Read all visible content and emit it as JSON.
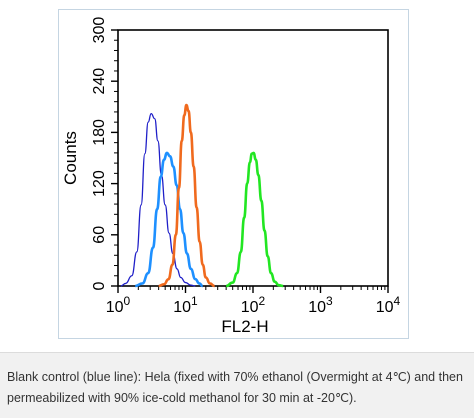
{
  "chart_data": {
    "type": "line",
    "title": "",
    "xlabel": "FL2-H",
    "ylabel": "Counts",
    "x_scale": "log",
    "xlim": [
      1,
      10000
    ],
    "ylim": [
      0,
      300
    ],
    "x_ticks": [
      {
        "value": 1,
        "base": "10",
        "exp": "0"
      },
      {
        "value": 10,
        "base": "10",
        "exp": "1"
      },
      {
        "value": 100,
        "base": "10",
        "exp": "2"
      },
      {
        "value": 1000,
        "base": "10",
        "exp": "3"
      },
      {
        "value": 10000,
        "base": "10",
        "exp": "4"
      }
    ],
    "y_ticks": [
      "0",
      "60",
      "120",
      "180",
      "240",
      "300"
    ],
    "grid": false,
    "series": [
      {
        "color": "#1f1fc8",
        "points": [
          [
            1.1,
            0
          ],
          [
            1.3,
            3
          ],
          [
            1.6,
            12
          ],
          [
            1.9,
            40
          ],
          [
            2.2,
            95
          ],
          [
            2.5,
            155
          ],
          [
            2.8,
            192
          ],
          [
            3.1,
            202
          ],
          [
            3.5,
            196
          ],
          [
            3.9,
            170
          ],
          [
            4.4,
            130
          ],
          [
            5.0,
            95
          ],
          [
            5.7,
            62
          ],
          [
            6.5,
            38
          ],
          [
            7.5,
            20
          ],
          [
            8.5,
            10
          ],
          [
            10,
            4
          ],
          [
            12,
            1
          ],
          [
            14,
            0
          ]
        ]
      },
      {
        "color": "#1e90ff",
        "points": [
          [
            1.8,
            0
          ],
          [
            2.3,
            3
          ],
          [
            2.8,
            15
          ],
          [
            3.3,
            45
          ],
          [
            3.8,
            90
          ],
          [
            4.3,
            128
          ],
          [
            4.8,
            148
          ],
          [
            5.3,
            156
          ],
          [
            5.9,
            152
          ],
          [
            6.6,
            140
          ],
          [
            7.4,
            118
          ],
          [
            8.3,
            90
          ],
          [
            9.3,
            62
          ],
          [
            10.5,
            38
          ],
          [
            12,
            20
          ],
          [
            14,
            8
          ],
          [
            16,
            3
          ],
          [
            18,
            0
          ]
        ]
      },
      {
        "color": "#f06a1e",
        "points": [
          [
            4.0,
            0
          ],
          [
            4.8,
            2
          ],
          [
            5.6,
            8
          ],
          [
            6.4,
            25
          ],
          [
            7.2,
            60
          ],
          [
            8.0,
            115
          ],
          [
            8.8,
            170
          ],
          [
            9.6,
            200
          ],
          [
            10.3,
            212
          ],
          [
            11.1,
            205
          ],
          [
            12,
            180
          ],
          [
            13.2,
            140
          ],
          [
            14.6,
            92
          ],
          [
            16.2,
            52
          ],
          [
            18,
            25
          ],
          [
            20,
            10
          ],
          [
            23,
            3
          ],
          [
            27,
            0
          ]
        ]
      },
      {
        "color": "#22e622",
        "points": [
          [
            40,
            0
          ],
          [
            50,
            4
          ],
          [
            58,
            15
          ],
          [
            66,
            40
          ],
          [
            74,
            80
          ],
          [
            82,
            120
          ],
          [
            90,
            145
          ],
          [
            96,
            155
          ],
          [
            102,
            156
          ],
          [
            110,
            148
          ],
          [
            120,
            130
          ],
          [
            133,
            100
          ],
          [
            148,
            65
          ],
          [
            165,
            35
          ],
          [
            185,
            15
          ],
          [
            210,
            5
          ],
          [
            240,
            1
          ],
          [
            280,
            0
          ]
        ]
      }
    ]
  },
  "caption": {
    "text": "Blank control (blue line): Hela (fixed with 70% ethanol (Overmight at 4℃) and then permeabilized with 90% ice-cold methanol for 30 min at -20℃)."
  }
}
